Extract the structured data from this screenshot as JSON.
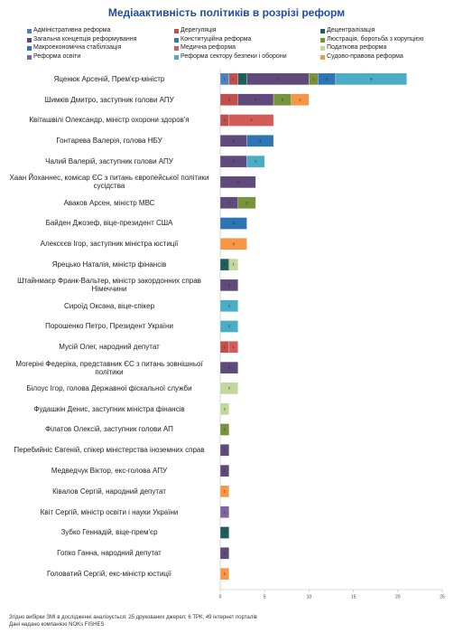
{
  "chart_data": {
    "type": "stacked-barh",
    "title": "Медіаактивність політиків в розрізі реформ",
    "categories": [
      "Яценюк Арсеній,  Прем'єр-міністр",
      "Шимків Дмитро,  заступник голови АПУ",
      "Квіташвілі Олександр,  міністр охорони здоров'я",
      "Гонтарева Валерія,  голова НБУ",
      "Чалий Валерій,  заступник голови АПУ",
      "Хаан Йоханнес,  комісар ЄС з питань європейської політики сусідства",
      "Аваков Арсен,  міністр МВС",
      "Байден Джозеф,  віце-президент США",
      "Алексєєв Ігор,  заступник міністра юстиції",
      "Ярецько Наталія,  міністр фінансів",
      "Штайнмаєр Франк-Вальтер,  міністр закордонних справ Німеччини",
      "Сироїд Оксана,  віце-спікер",
      "Порошенко Петро,  Президент України",
      "Мусій Олег, народний депутат",
      "Могеріні Федеріка,  представник ЄС з питань зовнішньої політики",
      "Білоус Ігор,  голова Державної фіскальної служби",
      "Фудашкін Денис,  заступник міністра фінансів",
      "Філатов Олексій,  заступник голови АП",
      "Перебийніс Євгеній,  спікер міністерства іноземних справ",
      "Медведчук Віктор,  екс-голова АПУ",
      "Ківалов Сергій,  народний депутат",
      "Квіт Сергій,  міністр освіти і науки України",
      "Зубко Геннадій,  віце-прем'єр",
      "Гопко Ганна,  народний депутат",
      "Головатий Сергій,  екс-міністр юстиції"
    ],
    "series": [
      {
        "name": "Адміністративна реформа",
        "color": "#4f81bd",
        "values": [
          1,
          0,
          0,
          0,
          0,
          0,
          0,
          0,
          0,
          0,
          0,
          0,
          0,
          0,
          0,
          0,
          0,
          0,
          0,
          0,
          0,
          0,
          0,
          0,
          0
        ]
      },
      {
        "name": "Дерегуляція",
        "color": "#c0504d",
        "values": [
          1,
          2,
          1,
          0,
          0,
          0,
          0,
          0,
          0,
          0,
          0,
          0,
          0,
          1,
          0,
          0,
          0,
          0,
          0,
          0,
          0,
          0,
          0,
          0,
          0
        ]
      },
      {
        "name": "Децентралізація",
        "color": "#1f5f5b",
        "values": [
          1,
          0,
          0,
          0,
          0,
          0,
          0,
          0,
          0,
          1,
          0,
          0,
          0,
          0,
          0,
          0,
          0,
          0,
          0,
          0,
          0,
          0,
          1,
          0,
          0
        ]
      },
      {
        "name": "Загальна концепція реформування",
        "color": "#604a7b",
        "values": [
          7,
          4,
          0,
          3,
          3,
          4,
          2,
          0,
          0,
          0,
          2,
          0,
          0,
          0,
          2,
          0,
          0,
          0,
          1,
          1,
          0,
          0,
          0,
          1,
          0
        ]
      },
      {
        "name": "Конституційна реформа",
        "color": "#3a75c4",
        "values": [
          0,
          0,
          0,
          0,
          0,
          0,
          0,
          0,
          0,
          0,
          0,
          0,
          0,
          0,
          0,
          0,
          0,
          0,
          0,
          0,
          0,
          0,
          0,
          0,
          0
        ]
      },
      {
        "name": "Люстрація, боротьба з корупцією",
        "color": "#77933c",
        "values": [
          1,
          2,
          0,
          0,
          0,
          0,
          2,
          0,
          0,
          0,
          0,
          0,
          0,
          0,
          0,
          0,
          0,
          1,
          0,
          0,
          0,
          0,
          0,
          0,
          0
        ]
      },
      {
        "name": "Макроекономічна стабілізація",
        "color": "#2e75b6",
        "values": [
          2,
          0,
          0,
          3,
          0,
          0,
          0,
          3,
          0,
          0,
          0,
          0,
          0,
          0,
          0,
          0,
          0,
          0,
          0,
          0,
          0,
          0,
          0,
          0,
          0
        ]
      },
      {
        "name": "Медична реформа",
        "color": "#d35b58",
        "values": [
          0,
          0,
          5,
          0,
          0,
          0,
          0,
          0,
          0,
          0,
          0,
          0,
          0,
          1,
          0,
          0,
          0,
          0,
          0,
          0,
          0,
          0,
          0,
          0,
          0
        ]
      },
      {
        "name": "Податкова реформа",
        "color": "#c3d69b",
        "values": [
          0,
          0,
          0,
          0,
          0,
          0,
          0,
          0,
          0,
          1,
          0,
          0,
          0,
          0,
          0,
          2,
          1,
          0,
          0,
          0,
          0,
          0,
          0,
          0,
          0
        ]
      },
      {
        "name": "Реформа освіти",
        "color": "#8064a2",
        "values": [
          0,
          0,
          0,
          0,
          0,
          0,
          0,
          0,
          0,
          0,
          0,
          0,
          0,
          0,
          0,
          0,
          0,
          0,
          0,
          0,
          0,
          1,
          0,
          0,
          0
        ]
      },
      {
        "name": "Реформа сектору безпеки і оборони",
        "color": "#4bacc6",
        "values": [
          8,
          0,
          0,
          0,
          2,
          0,
          0,
          0,
          0,
          0,
          0,
          2,
          2,
          0,
          0,
          0,
          0,
          0,
          0,
          0,
          0,
          0,
          0,
          0,
          0
        ]
      },
      {
        "name": "Судово-правова реформа",
        "color": "#f79646",
        "values": [
          0,
          2,
          0,
          0,
          0,
          0,
          0,
          0,
          3,
          0,
          0,
          0,
          0,
          0,
          0,
          0,
          0,
          0,
          0,
          0,
          1,
          0,
          0,
          0,
          1
        ]
      }
    ],
    "xlim": [
      0,
      25
    ],
    "xticks": [
      0,
      5,
      10,
      15,
      20,
      25
    ],
    "notes": [
      "Згідно вибірки ЗМІ в дослідженні аналізується: 25 друкованих джерел; 6 ТРК; 49 інтернет порталів",
      "Дані надано компанією NOKs FISHES"
    ]
  }
}
